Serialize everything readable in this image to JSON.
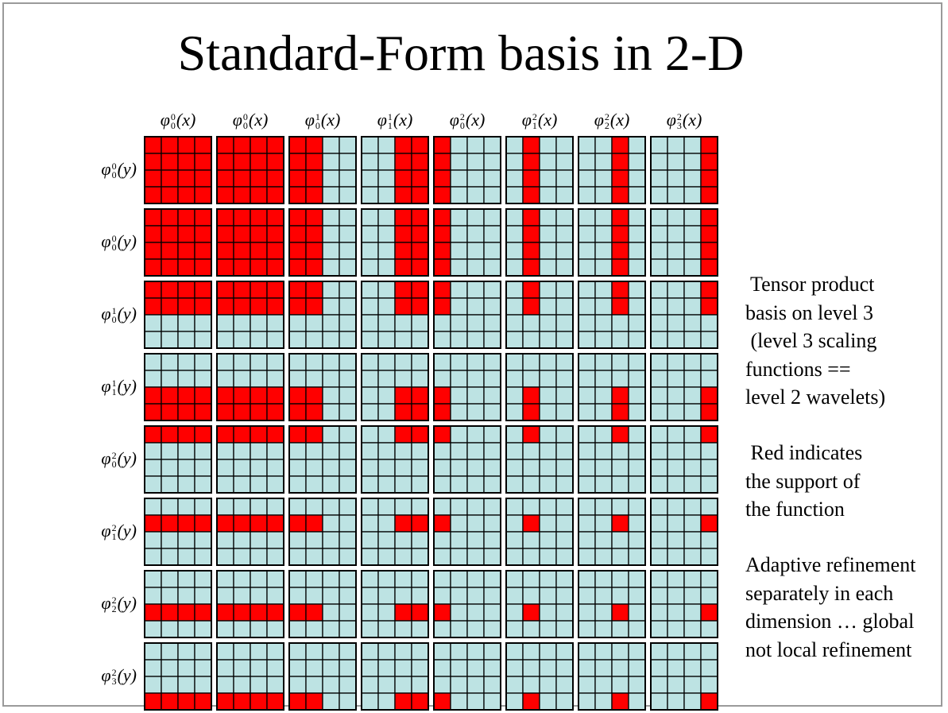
{
  "title": "Standard-Form basis in 2-D",
  "x_functions": [
    {
      "base": "φ",
      "sup": "0",
      "sub": "0",
      "arg": "(x)"
    },
    {
      "base": "φ",
      "sup": "0",
      "sub": "0",
      "arg": "(x)"
    },
    {
      "base": "φ",
      "sup": "1",
      "sub": "0",
      "arg": "(x)"
    },
    {
      "base": "φ",
      "sup": "1",
      "sub": "1",
      "arg": "(x)"
    },
    {
      "base": "φ",
      "sup": "2",
      "sub": "0",
      "arg": "(x)"
    },
    {
      "base": "φ",
      "sup": "2",
      "sub": "1",
      "arg": "(x)"
    },
    {
      "base": "φ",
      "sup": "2",
      "sub": "2",
      "arg": "(x)"
    },
    {
      "base": "φ",
      "sup": "2",
      "sub": "3",
      "arg": "(x)"
    }
  ],
  "y_functions": [
    {
      "base": "φ",
      "sup": "0",
      "sub": "0",
      "arg": "(y)"
    },
    {
      "base": "φ",
      "sup": "0",
      "sub": "0",
      "arg": "(y)"
    },
    {
      "base": "φ",
      "sup": "1",
      "sub": "0",
      "arg": "(y)"
    },
    {
      "base": "φ",
      "sup": "1",
      "sub": "1",
      "arg": "(y)"
    },
    {
      "base": "φ",
      "sup": "2",
      "sub": "0",
      "arg": "(y)"
    },
    {
      "base": "φ",
      "sup": "2",
      "sub": "1",
      "arg": "(y)"
    },
    {
      "base": "φ",
      "sup": "2",
      "sub": "2",
      "arg": "(y)"
    },
    {
      "base": "φ",
      "sup": "2",
      "sub": "3",
      "arg": "(y)"
    }
  ],
  "support_x": [
    [
      0,
      1,
      2,
      3
    ],
    [
      0,
      1,
      2,
      3
    ],
    [
      0,
      1
    ],
    [
      2,
      3
    ],
    [
      0
    ],
    [
      1
    ],
    [
      2
    ],
    [
      3
    ]
  ],
  "support_y": [
    [
      0,
      1,
      2,
      3
    ],
    [
      0,
      1,
      2,
      3
    ],
    [
      0,
      1
    ],
    [
      2,
      3
    ],
    [
      0
    ],
    [
      1
    ],
    [
      2
    ],
    [
      3
    ]
  ],
  "colors": {
    "support": "#ff0000",
    "background": "#bde3e3",
    "line": "#000000"
  },
  "side_text": {
    "block1": " Tensor product\nbasis on level 3\n (level 3 scaling\nfunctions ==\nlevel 2 wavelets)",
    "block2": " Red indicates\nthe support of\nthe function",
    "block3": "Adaptive refinement\nseparately in each\ndimension … global\nnot local refinement"
  }
}
